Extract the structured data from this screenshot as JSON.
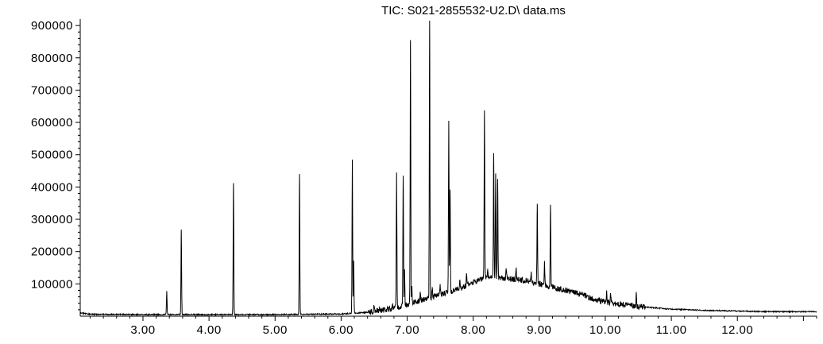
{
  "chart_data": {
    "type": "line",
    "title": "TIC: S021-2855532-U2.D\\ data.ms",
    "xlabel": "",
    "ylabel": "",
    "xlim": [
      2.05,
      13.2
    ],
    "ylim": [
      0,
      920000
    ],
    "x_ticks": [
      "3.00",
      "4.00",
      "5.00",
      "6.00",
      "7.00",
      "8.00",
      "9.00",
      "10.00",
      "11.00",
      "12.00"
    ],
    "x_tick_values": [
      3,
      4,
      5,
      6,
      7,
      8,
      9,
      10,
      11,
      12
    ],
    "y_ticks": [
      "100000",
      "200000",
      "300000",
      "400000",
      "500000",
      "600000",
      "700000",
      "800000",
      "900000"
    ],
    "y_tick_values": [
      100000,
      200000,
      300000,
      400000,
      500000,
      600000,
      700000,
      800000,
      900000
    ],
    "grid": false,
    "legend": "none",
    "baseline": [
      [
        2.05,
        10000
      ],
      [
        2.2,
        6000
      ],
      [
        3.0,
        5000
      ],
      [
        4.0,
        5000
      ],
      [
        5.0,
        5000
      ],
      [
        6.0,
        7000
      ],
      [
        6.4,
        12000
      ],
      [
        6.6,
        18000
      ],
      [
        6.8,
        25000
      ],
      [
        7.0,
        35000
      ],
      [
        7.2,
        50000
      ],
      [
        7.4,
        60000
      ],
      [
        7.6,
        72000
      ],
      [
        7.8,
        85000
      ],
      [
        8.0,
        105000
      ],
      [
        8.2,
        120000
      ],
      [
        8.4,
        118000
      ],
      [
        8.6,
        115000
      ],
      [
        8.8,
        110000
      ],
      [
        9.0,
        100000
      ],
      [
        9.2,
        90000
      ],
      [
        9.4,
        80000
      ],
      [
        9.6,
        70000
      ],
      [
        9.8,
        55000
      ],
      [
        10.0,
        45000
      ],
      [
        10.2,
        38000
      ],
      [
        10.5,
        30000
      ],
      [
        11.0,
        22000
      ],
      [
        11.5,
        18000
      ],
      [
        12.0,
        16000
      ],
      [
        12.5,
        14000
      ],
      [
        13.0,
        14000
      ],
      [
        13.2,
        14000
      ]
    ],
    "peaks": [
      [
        3.36,
        78000
      ],
      [
        3.58,
        268000
      ],
      [
        4.37,
        412000
      ],
      [
        5.37,
        440000
      ],
      [
        6.17,
        485000
      ],
      [
        6.19,
        172000
      ],
      [
        6.5,
        32000
      ],
      [
        6.58,
        30000
      ],
      [
        6.78,
        40000
      ],
      [
        6.84,
        445000
      ],
      [
        6.94,
        435000
      ],
      [
        6.96,
        145000
      ],
      [
        7.05,
        855000
      ],
      [
        7.07,
        90000
      ],
      [
        7.2,
        70000
      ],
      [
        7.34,
        915000
      ],
      [
        7.38,
        90000
      ],
      [
        7.5,
        95000
      ],
      [
        7.63,
        605000
      ],
      [
        7.65,
        392000
      ],
      [
        7.8,
        110000
      ],
      [
        7.9,
        130000
      ],
      [
        8.17,
        637000
      ],
      [
        8.22,
        140000
      ],
      [
        8.31,
        505000
      ],
      [
        8.34,
        440000
      ],
      [
        8.37,
        425000
      ],
      [
        8.5,
        145000
      ],
      [
        8.65,
        145000
      ],
      [
        8.88,
        130000
      ],
      [
        8.97,
        348000
      ],
      [
        9.08,
        165000
      ],
      [
        9.17,
        345000
      ],
      [
        10.02,
        80000
      ],
      [
        10.08,
        70000
      ],
      [
        10.47,
        72000
      ]
    ]
  }
}
